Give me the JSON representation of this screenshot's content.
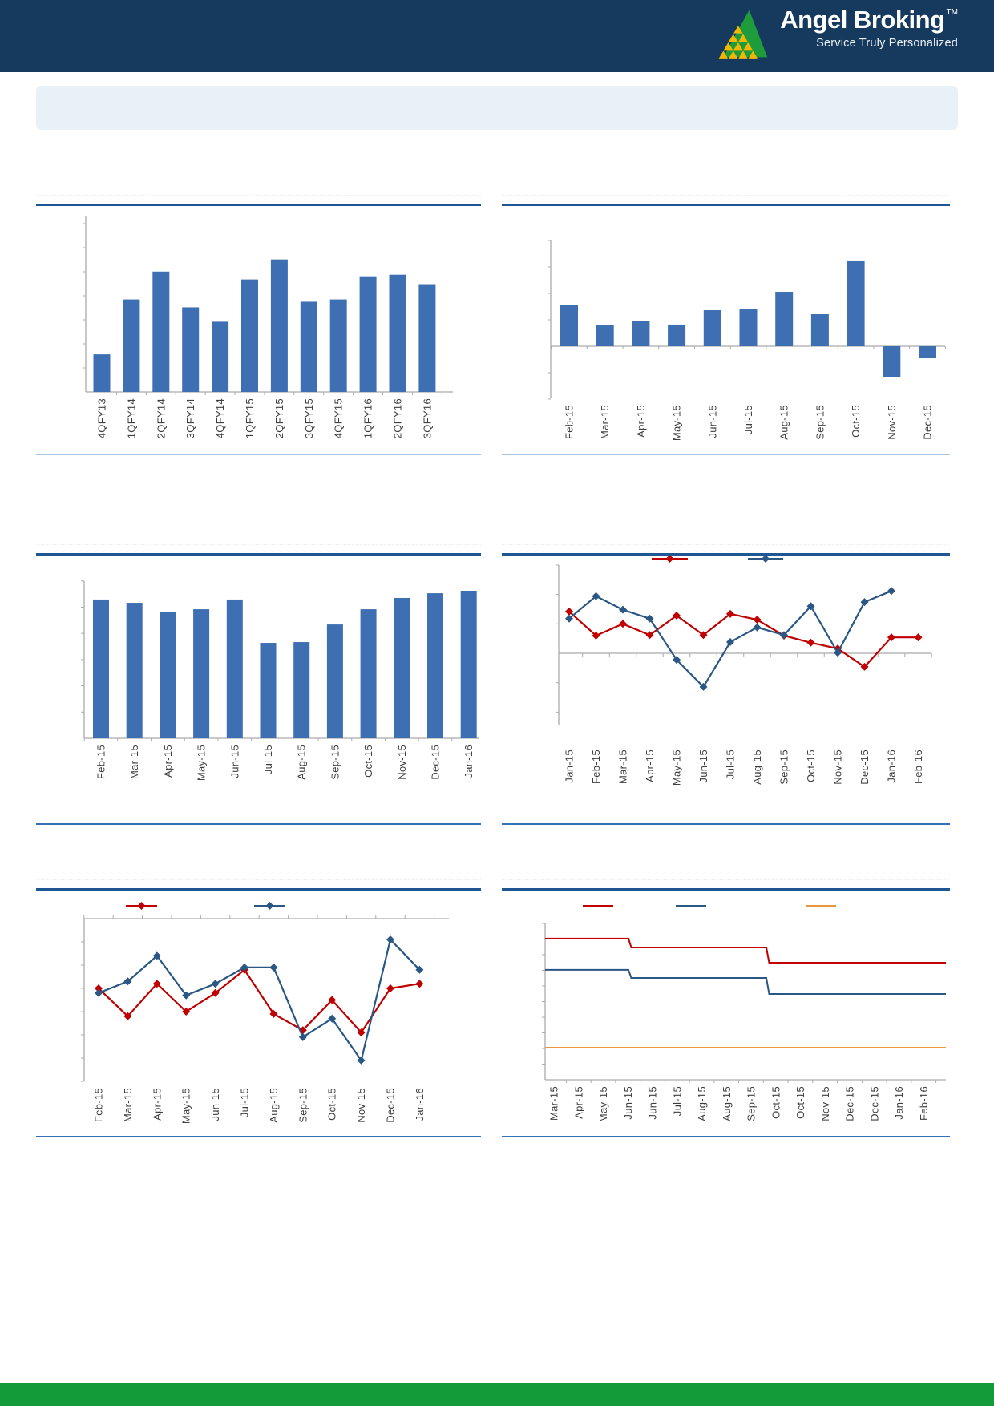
{
  "header": {
    "brand": "Angel Broking",
    "trademark": "TM",
    "tagline": "Service Truly Personalized",
    "background": "#16395e"
  },
  "banner": {
    "background": "#e9f1f8"
  },
  "footer": {
    "background": "#129b38"
  },
  "colors": {
    "axis": "#ababab",
    "label": "#3f3f3f",
    "bar": "#3e6fb2",
    "red": "#c00000",
    "blue": "#2a5784",
    "orange": "#e8973c",
    "title_rule": "#1f5795",
    "divider_light": "#a7c4e2",
    "divider": "#3470b4",
    "logo_green": "#1e9b3b",
    "logo_yellow": "#f2b705"
  },
  "chart_data": [
    {
      "type": "bar",
      "title": "",
      "xlabel": "",
      "ylabel": "",
      "categories": [
        "4QFY13",
        "1QFY14",
        "2QFY14",
        "3QFY14",
        "4QFY14",
        "1QFY15",
        "2QFY15",
        "3QFY15",
        "4QFY15",
        "1QFY16",
        "2QFY16",
        "3QFY16"
      ],
      "values": [
        21.4,
        52.7,
        68.6,
        48.2,
        40.0,
        64.1,
        75.5,
        51.4,
        52.7,
        65.9,
        66.8,
        61.4
      ],
      "unit": "relative (y-axis tick labels not visible)",
      "ylim": [
        0,
        100
      ],
      "grid": false,
      "legend": null
    },
    {
      "type": "bar",
      "title": "",
      "xlabel": "",
      "ylabel": "",
      "categories": [
        "Feb-15",
        "Mar-15",
        "Apr-15",
        "May-15",
        "Jun-15",
        "Jul-15",
        "Aug-15",
        "Sep-15",
        "Oct-15",
        "Nov-15",
        "Dec-15"
      ],
      "values": [
        39.2,
        20.2,
        24.2,
        20.5,
        34.1,
        35.6,
        51.5,
        30.3,
        81.1,
        -28.8,
        -11.4
      ],
      "unit": "relative (y-axis tick labels not visible)",
      "ylim": [
        -49,
        100
      ],
      "grid": false,
      "legend": null
    },
    {
      "type": "bar",
      "title": "",
      "xlabel": "",
      "ylabel": "",
      "categories": [
        "Feb-15",
        "Mar-15",
        "Apr-15",
        "May-15",
        "Jun-15",
        "Jul-15",
        "Aug-15",
        "Sep-15",
        "Oct-15",
        "Nov-15",
        "Dec-15",
        "Jan-16"
      ],
      "values": [
        88.3,
        86.2,
        80.6,
        82.1,
        88.3,
        60.7,
        61.2,
        72.4,
        82.1,
        89.3,
        92.3,
        93.9
      ],
      "unit": "relative (y-axis tick labels not visible)",
      "ylim": [
        0,
        100
      ],
      "grid": false,
      "legend": null
    },
    {
      "type": "line",
      "title": "",
      "xlabel": "",
      "ylabel": "",
      "categories": [
        "Jan-15",
        "Feb-15",
        "Mar-15",
        "Apr-15",
        "May-15",
        "Jun-15",
        "Jul-15",
        "Aug-15",
        "Sep-15",
        "Oct-15",
        "Nov-15",
        "Dec-15",
        "Jan-16",
        "Feb-16"
      ],
      "series": [
        {
          "name": "red-series",
          "color": "#c00000",
          "marker": "diamond",
          "label": "",
          "values": [
            7.1,
            3.0,
            5.0,
            3.1,
            6.4,
            3.1,
            6.7,
            5.7,
            3.0,
            1.8,
            0.8,
            -2.3,
            2.7,
            2.7
          ]
        },
        {
          "name": "blue-series",
          "color": "#2a5784",
          "marker": "diamond",
          "label": "",
          "values": [
            5.9,
            9.7,
            7.4,
            5.9,
            -1.1,
            -5.7,
            1.9,
            4.4,
            3.1,
            8.0,
            0.1,
            8.7,
            10.6,
            null
          ]
        }
      ],
      "unit": "relative (y-axis tick labels not visible)",
      "ylim": [
        -12,
        15
      ],
      "zero_axis": true,
      "grid": false,
      "legend_position": "top"
    },
    {
      "type": "line",
      "title": "",
      "xlabel": "",
      "ylabel": "",
      "categories": [
        "Feb-15",
        "Mar-15",
        "Apr-15",
        "May-15",
        "Jun-15",
        "Jul-15",
        "Aug-15",
        "Sep-15",
        "Oct-15",
        "Nov-15",
        "Dec-15",
        "Jan-16"
      ],
      "series": [
        {
          "name": "red-series",
          "color": "#c00000",
          "marker": "diamond",
          "label": "",
          "values": [
            -3.0,
            -4.2,
            -2.8,
            -4.0,
            -3.2,
            -2.2,
            -4.1,
            -4.8,
            -3.5,
            -4.9,
            -3.0,
            -2.8
          ]
        },
        {
          "name": "blue-series",
          "color": "#2a5784",
          "marker": "diamond",
          "label": "",
          "values": [
            -3.2,
            -2.7,
            -1.6,
            -3.3,
            -2.8,
            -2.1,
            -2.1,
            -5.1,
            -4.3,
            -6.1,
            -0.9,
            -2.2
          ]
        }
      ],
      "unit": "relative, all values below top zero axis (tick labels not visible)",
      "ylim": [
        -7,
        0
      ],
      "zero_axis": "top",
      "grid": false,
      "legend_position": "top"
    },
    {
      "type": "step-line",
      "title": "",
      "xlabel": "",
      "ylabel": "",
      "categories": [
        "Mar-15",
        "Apr-15",
        "May-15",
        "Jun-15",
        "Jun-15",
        "Jul-15",
        "Aug-15",
        "Aug-15",
        "Sep-15",
        "Oct-15",
        "Oct-15",
        "Nov-15",
        "Dec-15",
        "Dec-15",
        "Jan-16",
        "Feb-16"
      ],
      "series": [
        {
          "name": "red-series",
          "color": "#c00000",
          "label": "",
          "points": [
            [
              0,
              90.3
            ],
            [
              0.208,
              90.3
            ],
            [
              0.215,
              84.6
            ],
            [
              0.552,
              84.6
            ],
            [
              0.559,
              74.9
            ],
            [
              1,
              74.9
            ]
          ]
        },
        {
          "name": "blue-series",
          "color": "#2a5784",
          "label": "",
          "points": [
            [
              0,
              70.3
            ],
            [
              0.208,
              70.3
            ],
            [
              0.215,
              65.1
            ],
            [
              0.552,
              65.1
            ],
            [
              0.559,
              54.9
            ],
            [
              1,
              54.9
            ]
          ]
        },
        {
          "name": "orange-series",
          "color": "#e8973c",
          "label": "",
          "points": [
            [
              0,
              20.5
            ],
            [
              1,
              20.5
            ]
          ]
        }
      ],
      "unit": "relative levels, % of plot height (tick labels not visible)",
      "ylim": [
        0,
        100
      ],
      "grid": false,
      "legend_position": "top"
    }
  ]
}
